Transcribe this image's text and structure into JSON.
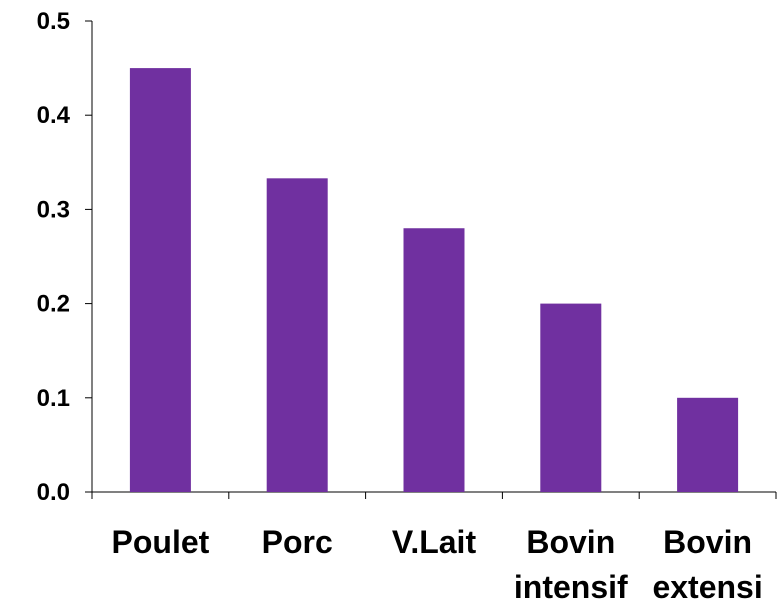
{
  "chart_data": {
    "type": "bar",
    "categories": [
      [
        "Poulet"
      ],
      [
        "Porc"
      ],
      [
        "V.Lait"
      ],
      [
        "Bovin",
        "intensif"
      ],
      [
        "Bovin",
        "extensi"
      ]
    ],
    "values": [
      0.45,
      0.333,
      0.28,
      0.2,
      0.1
    ],
    "ylim": [
      0,
      0.5
    ],
    "yticks": [
      "0.0",
      "0.1",
      "0.2",
      "0.3",
      "0.4",
      "0.5"
    ],
    "bar_color": "#7030A0",
    "grid": false
  }
}
